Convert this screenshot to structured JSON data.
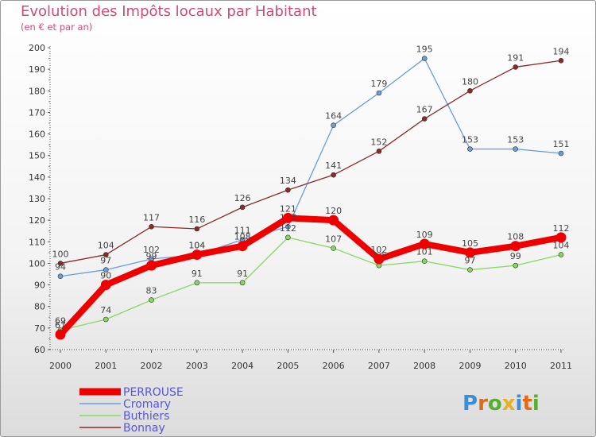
{
  "header": {
    "title": "Evolution des Impôts locaux par Habitant",
    "subtitle": "(en € et par an)"
  },
  "logo": {
    "letters": [
      "P",
      "r",
      "o",
      "x",
      "i",
      "t",
      "i"
    ],
    "colors": [
      "#3a8fd0",
      "#e06a1a",
      "#55b030",
      "#e8b020",
      "#3a8fd0",
      "#e06a1a",
      "#55b030"
    ]
  },
  "chart_data": {
    "type": "line",
    "title": "Evolution des Impôts locaux par Habitant",
    "subtitle": "(en € et par an)",
    "xlabel": "",
    "ylabel": "",
    "categories": [
      "2000",
      "2001",
      "2002",
      "2003",
      "2004",
      "2005",
      "2006",
      "2007",
      "2008",
      "2009",
      "2010",
      "2011"
    ],
    "yticks": [
      "60",
      "70",
      "80",
      "90",
      "100",
      "110",
      "120",
      "130",
      "140",
      "150",
      "160",
      "170",
      "180",
      "190",
      "200"
    ],
    "ylim": [
      60,
      200
    ],
    "grid": false,
    "legend_position": "bottom-left",
    "series": [
      {
        "name": "PERROUSE",
        "color": "#ee0000",
        "emphasis": true,
        "values": [
          67,
          90,
          99,
          104,
          108,
          121,
          120,
          102,
          109,
          105,
          108,
          112
        ]
      },
      {
        "name": "Cromary",
        "color": "#6a9ed8",
        "emphasis": false,
        "values": [
          94,
          97,
          102,
          104,
          111,
          117,
          164,
          179,
          195,
          153,
          153,
          151
        ]
      },
      {
        "name": "Buthiers",
        "color": "#88d860",
        "emphasis": false,
        "values": [
          69,
          74,
          83,
          91,
          91,
          112,
          107,
          99,
          101,
          97,
          99,
          104
        ]
      },
      {
        "name": "Bonnay",
        "color": "#8a2a2a",
        "emphasis": false,
        "values": [
          100,
          104,
          117,
          116,
          126,
          134,
          141,
          152,
          167,
          180,
          191,
          194
        ]
      }
    ]
  }
}
